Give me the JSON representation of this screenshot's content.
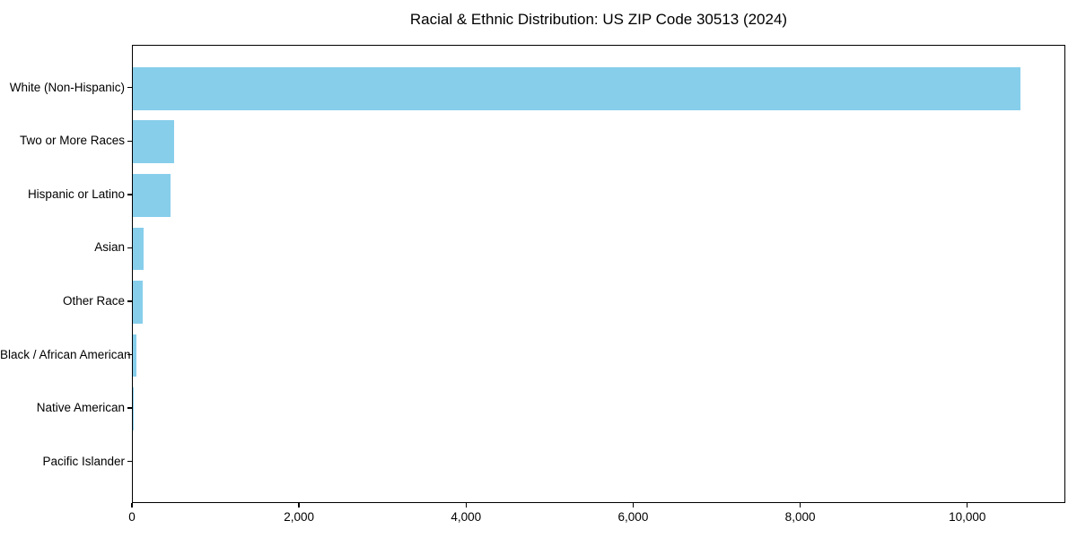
{
  "page": {
    "background": "#ffffff"
  },
  "chart_data": {
    "type": "bar",
    "orientation": "horizontal",
    "title": "Racial & Ethnic Distribution: US ZIP Code 30513 (2024)",
    "xlabel": "",
    "ylabel": "",
    "categories": [
      "White (Non-Hispanic)",
      "Two or More Races",
      "Hispanic or Latino",
      "Asian",
      "Other Race",
      "Black / African American",
      "Native American",
      "Pacific Islander"
    ],
    "values": [
      10630,
      490,
      450,
      130,
      120,
      45,
      10,
      0
    ],
    "xlim": [
      0,
      11174
    ],
    "x_ticks": [
      0,
      2000,
      4000,
      6000,
      8000,
      10000
    ],
    "x_tick_labels": [
      "0",
      "2,000",
      "4,000",
      "6,000",
      "8,000",
      "10,000"
    ],
    "bar_color": "#87CEEB",
    "axis_color": "#000000",
    "text_color": "#000000",
    "grid": false,
    "legend": "none"
  }
}
